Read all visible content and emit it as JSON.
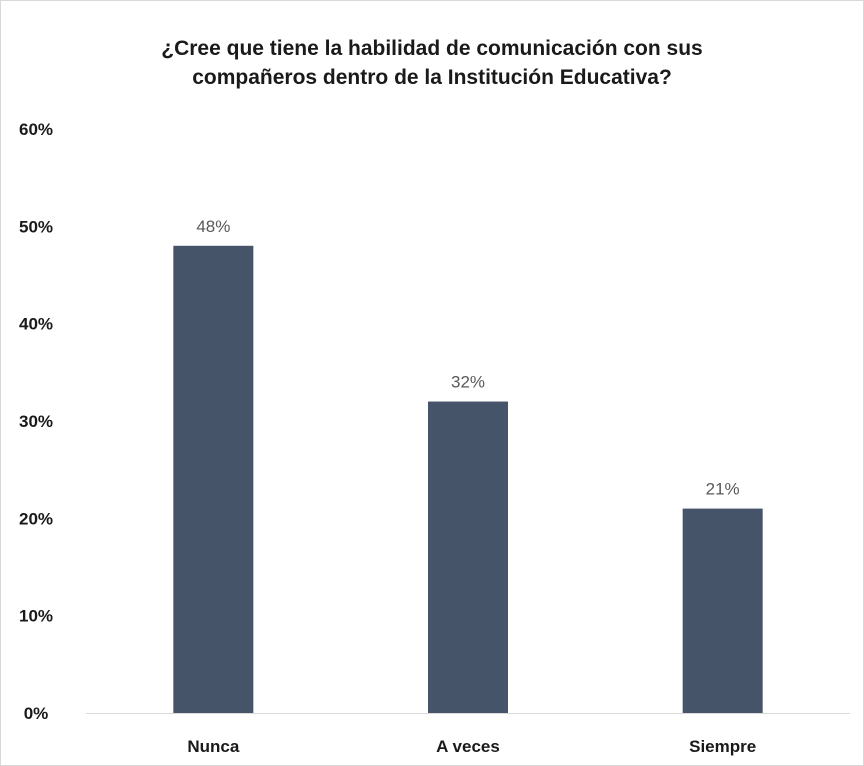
{
  "chart_data": {
    "type": "bar",
    "title_lines": [
      "¿Cree que tiene la habilidad de comunicación con sus",
      "compañeros dentro de la Institución Educativa?"
    ],
    "categories": [
      "Nunca",
      "A veces",
      "Siempre"
    ],
    "values": [
      0.48,
      0.32,
      0.21
    ],
    "data_labels": [
      "48%",
      "32%",
      "21%"
    ],
    "ylim": [
      0,
      0.6
    ],
    "yticks": [
      0,
      0.1,
      0.2,
      0.3,
      0.4,
      0.5,
      0.6
    ],
    "ytick_labels": [
      "0%",
      "10%",
      "20%",
      "30%",
      "40%",
      "50%",
      "60%"
    ],
    "bar_color": "#465469",
    "grid": false,
    "legend": "none"
  }
}
